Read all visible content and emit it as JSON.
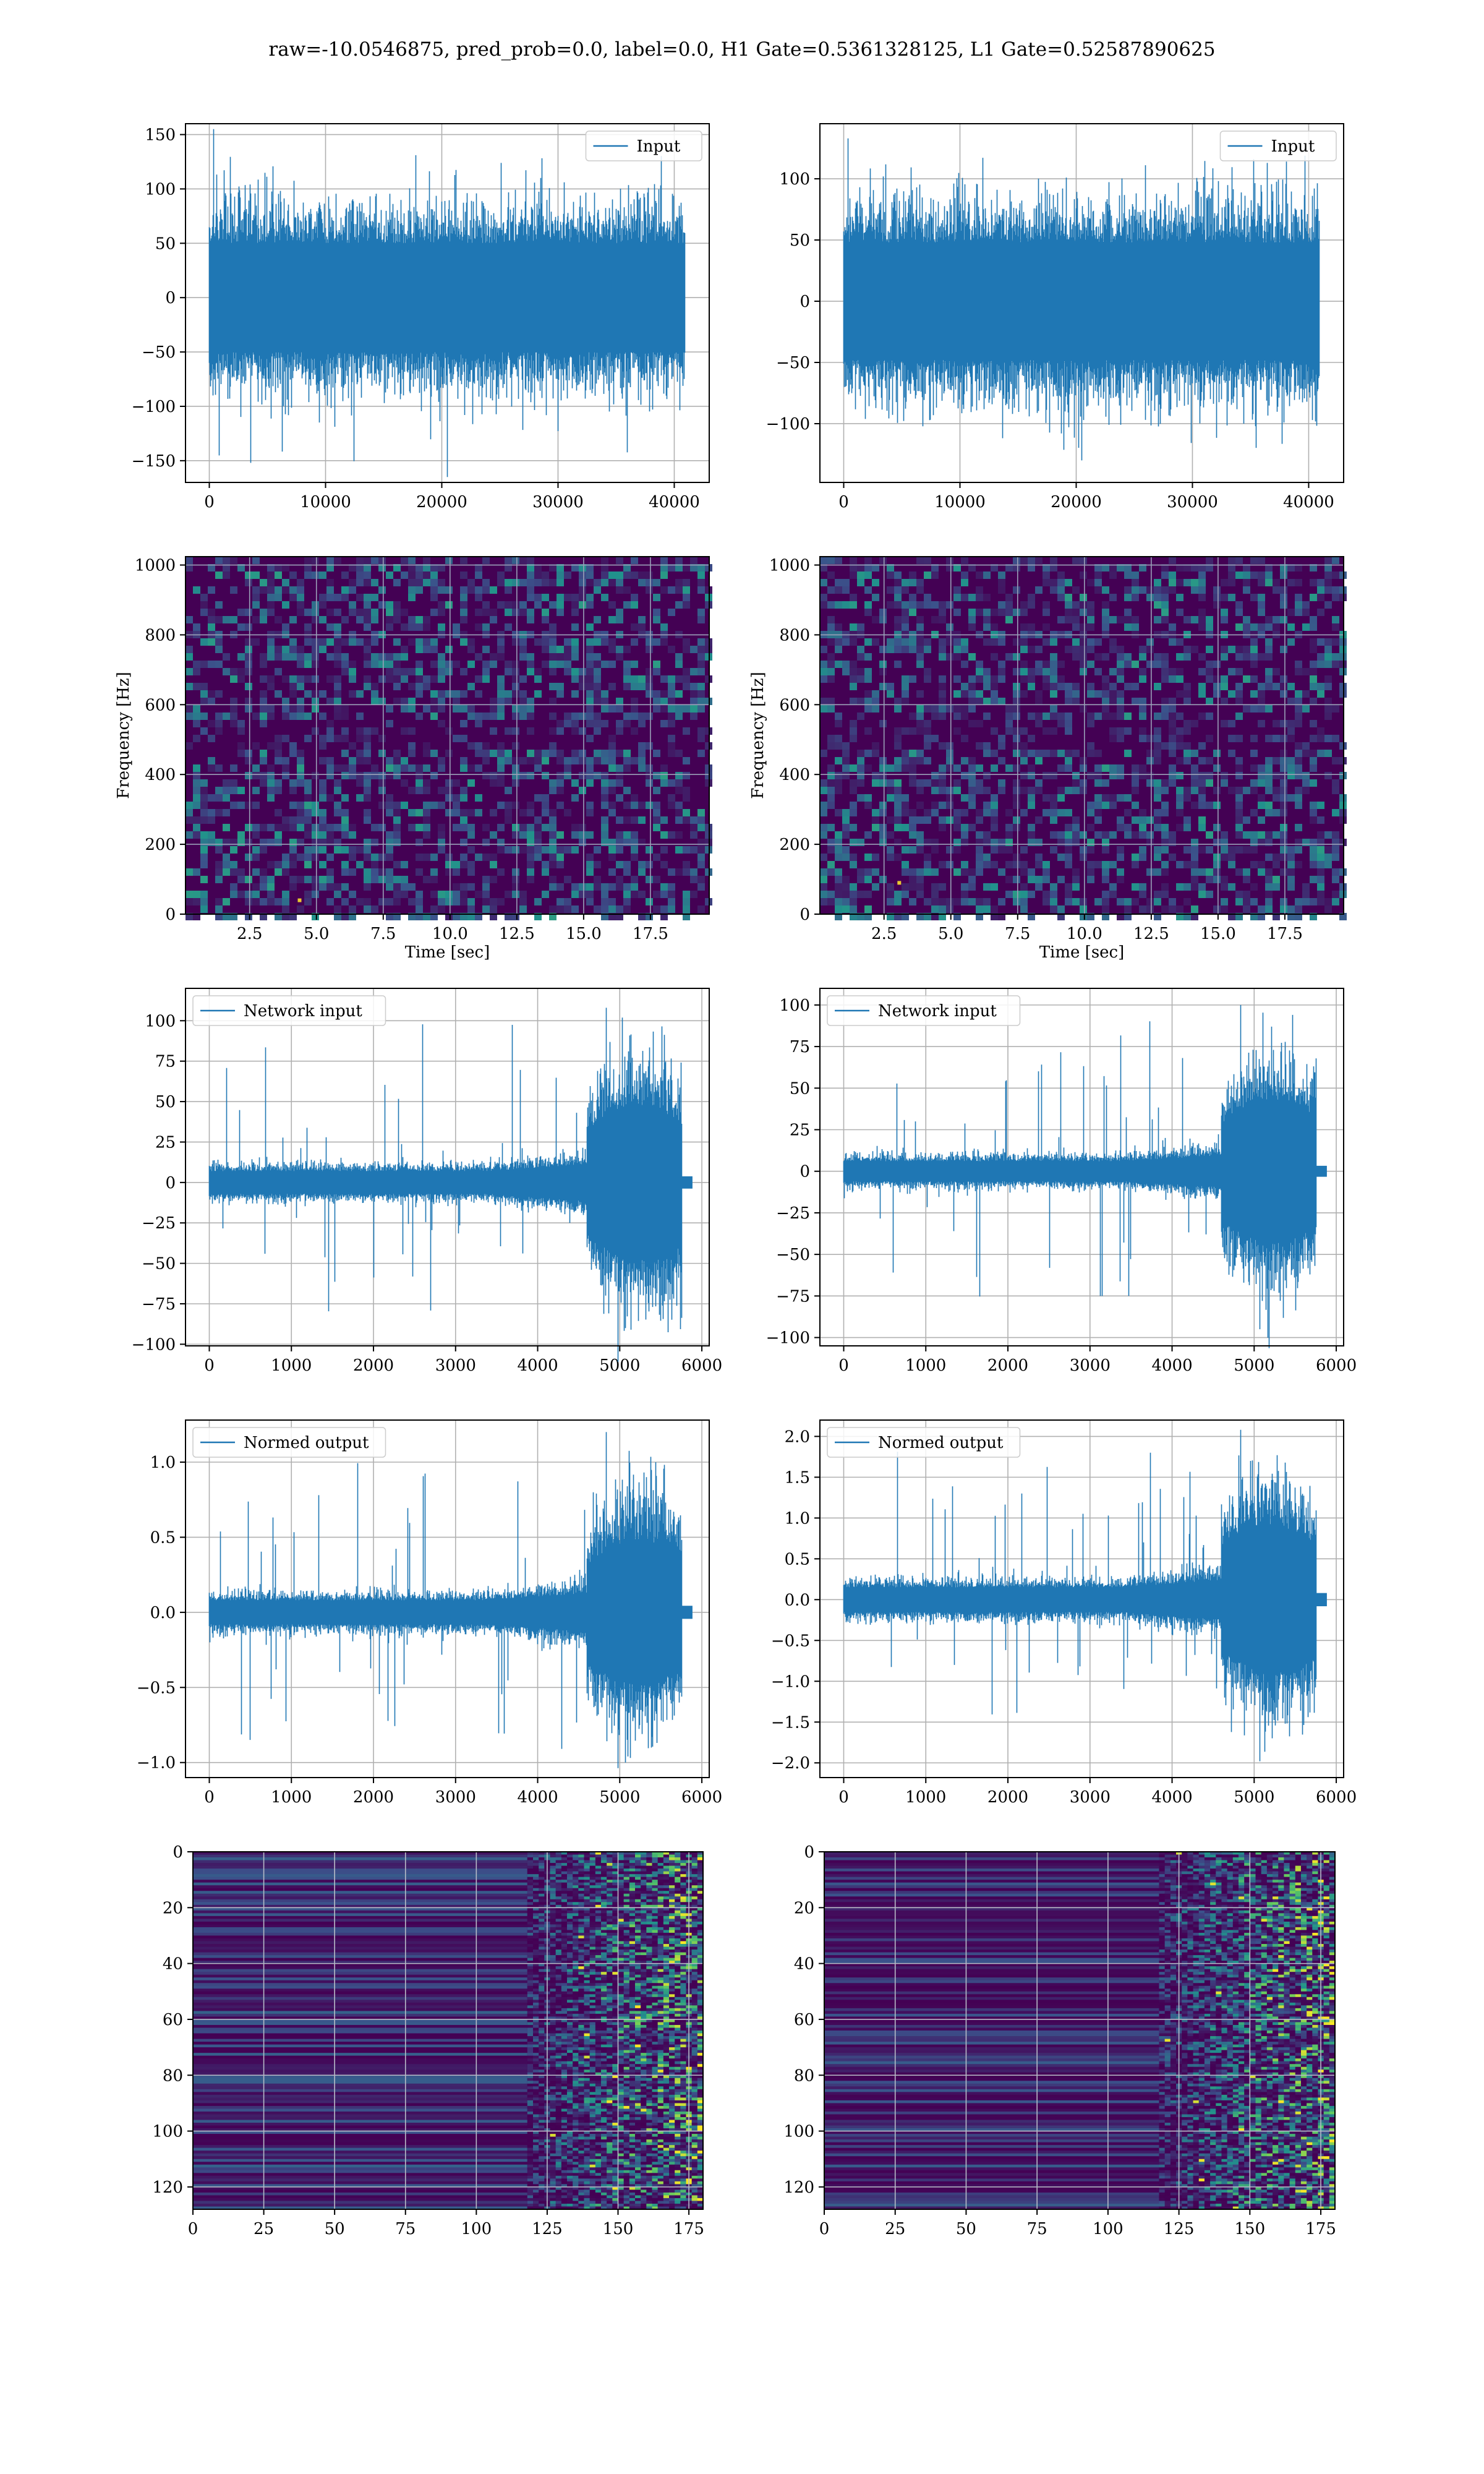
{
  "figure_title": "raw=-10.0546875, pred_prob=0.0, label=0.0, H1 Gate=0.5361328125, L1 Gate=0.52587890625",
  "colors": {
    "line": "#1f77b4",
    "grid": "#b0b0b0",
    "axis": "#000000",
    "viridis_low": "#440154",
    "viridis_mid": "#21918c",
    "viridis_high": "#fde725"
  },
  "chart_data": [
    {
      "id": "h1_input",
      "type": "line",
      "series": [
        {
          "name": "Input"
        }
      ],
      "legend": "upper right",
      "grid": true,
      "xlim": [
        -2048,
        43008
      ],
      "ylim": [
        -170,
        160
      ],
      "xticks": [
        0,
        10000,
        20000,
        30000,
        40000
      ],
      "xtick_labels": [
        "0",
        "10000",
        "20000",
        "30000",
        "40000"
      ],
      "yticks": [
        -150,
        -100,
        -50,
        0,
        50,
        100,
        150
      ],
      "ytick_labels": [
        "−150",
        "−100",
        "−50",
        "0",
        "50",
        "100",
        "150"
      ],
      "signal": {
        "n": 40960,
        "amp": 50,
        "peak_max": 155,
        "peak_min": -165
      }
    },
    {
      "id": "l1_input",
      "type": "line",
      "series": [
        {
          "name": "Input"
        }
      ],
      "legend": "upper right",
      "grid": true,
      "xlim": [
        -2048,
        43008
      ],
      "ylim": [
        -148,
        145
      ],
      "xticks": [
        0,
        10000,
        20000,
        30000,
        40000
      ],
      "xtick_labels": [
        "0",
        "10000",
        "20000",
        "30000",
        "40000"
      ],
      "yticks": [
        -100,
        -50,
        0,
        50,
        100
      ],
      "ytick_labels": [
        "−100",
        "−50",
        "0",
        "50",
        "100"
      ],
      "signal": {
        "n": 40960,
        "amp": 48,
        "peak_max": 133,
        "peak_min": -130
      }
    },
    {
      "id": "h1_spectrogram",
      "type": "heatmap",
      "xlabel": "Time [sec]",
      "ylabel": "Frequency [Hz]",
      "grid": true,
      "xlim": [
        0.1,
        19.7
      ],
      "ylim": [
        0,
        1024
      ],
      "xticks": [
        2.5,
        5.0,
        7.5,
        10.0,
        12.5,
        15.0,
        17.5
      ],
      "xtick_labels": [
        "2.5",
        "5.0",
        "7.5",
        "10.0",
        "12.5",
        "15.0",
        "17.5"
      ],
      "yticks": [
        0,
        200,
        400,
        600,
        800,
        1000
      ],
      "ytick_labels": [
        "0",
        "200",
        "400",
        "600",
        "800",
        "1000"
      ]
    },
    {
      "id": "l1_spectrogram",
      "type": "heatmap",
      "xlabel": "Time [sec]",
      "ylabel": "Frequency [Hz]",
      "grid": true,
      "xlim": [
        0.1,
        19.7
      ],
      "ylim": [
        0,
        1024
      ],
      "xticks": [
        2.5,
        5.0,
        7.5,
        10.0,
        12.5,
        15.0,
        17.5
      ],
      "xtick_labels": [
        "2.5",
        "5.0",
        "7.5",
        "10.0",
        "12.5",
        "15.0",
        "17.5"
      ],
      "yticks": [
        0,
        200,
        400,
        600,
        800,
        1000
      ],
      "ytick_labels": [
        "0",
        "200",
        "400",
        "600",
        "800",
        "1000"
      ]
    },
    {
      "id": "h1_network_input",
      "type": "line",
      "series": [
        {
          "name": "Network input"
        }
      ],
      "legend": "upper left",
      "grid": true,
      "xlim": [
        -290,
        6090
      ],
      "ylim": [
        -101,
        120
      ],
      "xticks": [
        0,
        1000,
        2000,
        3000,
        4000,
        5000,
        6000
      ],
      "xtick_labels": [
        "0",
        "1000",
        "2000",
        "3000",
        "4000",
        "5000",
        "6000"
      ],
      "yticks": [
        -100,
        -75,
        -50,
        -25,
        0,
        25,
        50,
        75,
        100
      ],
      "ytick_labels": [
        "−100",
        "−75",
        "−50",
        "−25",
        "0",
        "25",
        "50",
        "75",
        "100"
      ],
      "signal": {
        "n": 5760,
        "base_amp": 7,
        "burst_start": 4600,
        "burst_amp": 40,
        "end": 5760,
        "peak_max": 108,
        "peak_min": -90
      }
    },
    {
      "id": "l1_network_input",
      "type": "line",
      "series": [
        {
          "name": "Network input"
        }
      ],
      "legend": "upper left",
      "grid": true,
      "xlim": [
        -290,
        6090
      ],
      "ylim": [
        -105,
        110
      ],
      "xticks": [
        0,
        1000,
        2000,
        3000,
        4000,
        5000,
        6000
      ],
      "xtick_labels": [
        "0",
        "1000",
        "2000",
        "3000",
        "4000",
        "5000",
        "6000"
      ],
      "yticks": [
        -100,
        -75,
        -50,
        -25,
        0,
        25,
        50,
        75,
        100
      ],
      "ytick_labels": [
        "−100",
        "−75",
        "−50",
        "−25",
        "0",
        "25",
        "50",
        "75",
        "100"
      ],
      "signal": {
        "n": 5760,
        "base_amp": 6,
        "burst_start": 4600,
        "burst_amp": 36,
        "end": 5760,
        "peak_max": 100,
        "peak_min": -95
      }
    },
    {
      "id": "h1_normed_output",
      "type": "line",
      "series": [
        {
          "name": "Normed output"
        }
      ],
      "legend": "upper left",
      "grid": true,
      "xlim": [
        -290,
        6090
      ],
      "ylim": [
        -1.1,
        1.28
      ],
      "xticks": [
        0,
        1000,
        2000,
        3000,
        4000,
        5000,
        6000
      ],
      "xtick_labels": [
        "0",
        "1000",
        "2000",
        "3000",
        "4000",
        "5000",
        "6000"
      ],
      "yticks": [
        -1.0,
        -0.5,
        0.0,
        0.5,
        1.0
      ],
      "ytick_labels": [
        "−1.0",
        "−0.5",
        "0.0",
        "0.5",
        "1.0"
      ],
      "signal": {
        "n": 5760,
        "base_amp": 0.08,
        "burst_start": 4600,
        "burst_amp": 0.4,
        "end": 5760,
        "peak_max": 1.2,
        "peak_min": -1.0
      }
    },
    {
      "id": "l1_normed_output",
      "type": "line",
      "series": [
        {
          "name": "Normed output"
        }
      ],
      "legend": "upper left",
      "grid": true,
      "xlim": [
        -290,
        6090
      ],
      "ylim": [
        -2.18,
        2.2
      ],
      "xticks": [
        0,
        1000,
        2000,
        3000,
        4000,
        5000,
        6000
      ],
      "xtick_labels": [
        "0",
        "1000",
        "2000",
        "3000",
        "4000",
        "5000",
        "6000"
      ],
      "yticks": [
        -2.0,
        -1.5,
        -1.0,
        -0.5,
        0.0,
        0.5,
        1.0,
        1.5,
        2.0
      ],
      "ytick_labels": [
        "−2.0",
        "−1.5",
        "−1.0",
        "−0.5",
        "0.0",
        "0.5",
        "1.0",
        "1.5",
        "2.0"
      ],
      "signal": {
        "n": 5760,
        "base_amp": 0.15,
        "burst_start": 4600,
        "burst_amp": 0.75,
        "end": 5760,
        "peak_max": 2.08,
        "peak_min": -1.98
      }
    },
    {
      "id": "h1_feature_map",
      "type": "heatmap",
      "grid": true,
      "rows": 128,
      "cols": 180,
      "xlim": [
        0,
        180
      ],
      "ylim": [
        128,
        0
      ],
      "yaxis_inverted": true,
      "xticks": [
        0,
        25,
        50,
        75,
        100,
        125,
        150,
        175
      ],
      "xtick_labels": [
        "0",
        "25",
        "50",
        "75",
        "100",
        "125",
        "150",
        "175"
      ],
      "yticks": [
        0,
        20,
        40,
        60,
        80,
        100,
        120
      ],
      "ytick_labels": [
        "0",
        "20",
        "40",
        "60",
        "80",
        "100",
        "120"
      ]
    },
    {
      "id": "l1_feature_map",
      "type": "heatmap",
      "grid": true,
      "rows": 128,
      "cols": 180,
      "xlim": [
        0,
        180
      ],
      "ylim": [
        128,
        0
      ],
      "yaxis_inverted": true,
      "xticks": [
        0,
        25,
        50,
        75,
        100,
        125,
        150,
        175
      ],
      "xtick_labels": [
        "0",
        "25",
        "50",
        "75",
        "100",
        "125",
        "150",
        "175"
      ],
      "yticks": [
        0,
        20,
        40,
        60,
        80,
        100,
        120
      ],
      "ytick_labels": [
        "0",
        "20",
        "40",
        "60",
        "80",
        "100",
        "120"
      ]
    }
  ]
}
